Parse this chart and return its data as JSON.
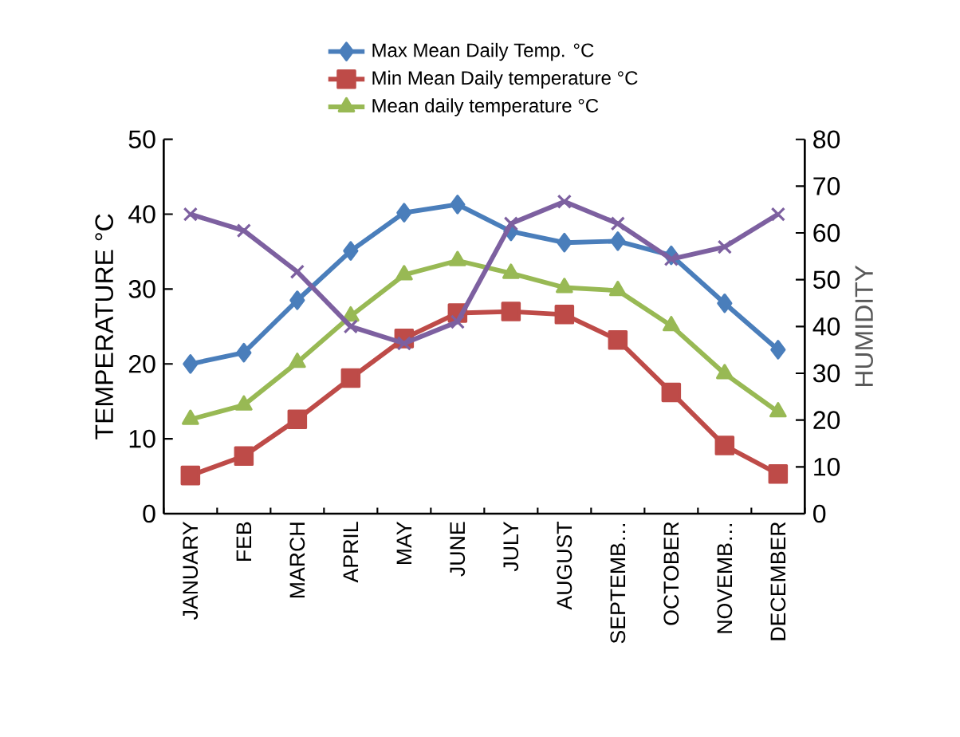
{
  "chart_data": {
    "type": "line",
    "categories": [
      "JANUARY",
      "FEB",
      "MARCH",
      "APRIL",
      "MAY",
      "JUNE",
      "JULY",
      "AUGUST",
      "SEPTEMB…",
      "OCTOBER",
      "NOVEMB…",
      "DECEMBER"
    ],
    "ylabel": "TEMPERATURE °C",
    "y2label": "HUMIDITY",
    "ylim": [
      0,
      50
    ],
    "yticks": [
      0,
      10,
      20,
      30,
      40,
      50
    ],
    "y2lim": [
      0,
      80
    ],
    "y2ticks": [
      0,
      10,
      20,
      30,
      40,
      50,
      60,
      70,
      80
    ],
    "legend": "top",
    "grid": false,
    "series": [
      {
        "name": "Max Mean Daily Temp. °C",
        "color": "#4a7ebb",
        "marker": "diamond",
        "values": [
          20,
          21.5,
          28.5,
          35.1,
          40.2,
          41.3,
          37.7,
          36.2,
          36.4,
          34.5,
          28.1,
          21.9
        ]
      },
      {
        "name": "Min Mean Daily temperature  °C",
        "color": "#be4b48",
        "marker": "square",
        "values": [
          5.1,
          7.7,
          12.6,
          18.1,
          23.4,
          26.8,
          27,
          26.6,
          23.2,
          16.2,
          9.1,
          5.3
        ]
      },
      {
        "name": "Mean daily temperature °C",
        "color": "#98b954",
        "marker": "triangle",
        "values": [
          12.6,
          14.5,
          20.2,
          26.4,
          31.9,
          33.8,
          32.1,
          30.2,
          29.8,
          25.1,
          18.7,
          13.6
        ]
      },
      {
        "color": "#7d60a0",
        "marker": "cross",
        "axis": "y2",
        "values": [
          64,
          60.5,
          51.7,
          40,
          36.4,
          41,
          62,
          66.7,
          62,
          54.4,
          57,
          64
        ]
      }
    ]
  }
}
